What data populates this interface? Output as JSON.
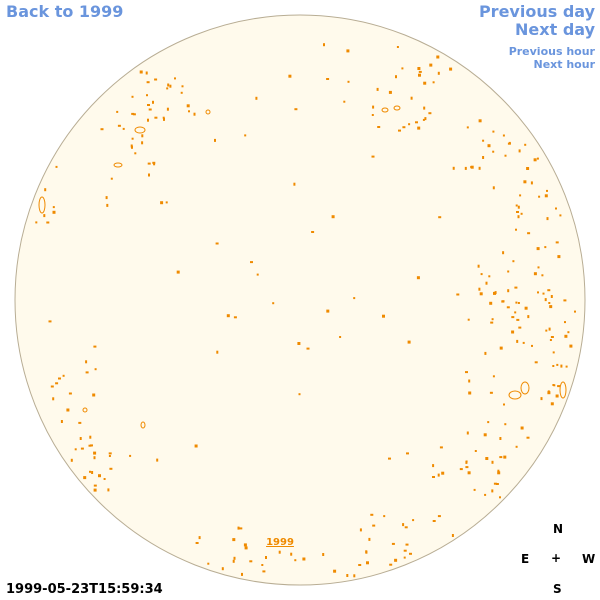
{
  "nav": {
    "back": "Back to 1999",
    "previous_day": "Previous day",
    "next_day": "Next day",
    "previous_hour": "Previous hour",
    "next_hour": "Next hour"
  },
  "disk": {
    "year_label": "1999",
    "fill_color": "#fffaec",
    "edge_color": "#b8ad94",
    "marker_color": "#ef8a00"
  },
  "compass": {
    "north": "N",
    "east": "E",
    "center": "+",
    "west": "W",
    "south": "S"
  },
  "timestamp": "1999-05-23T15:59:34"
}
